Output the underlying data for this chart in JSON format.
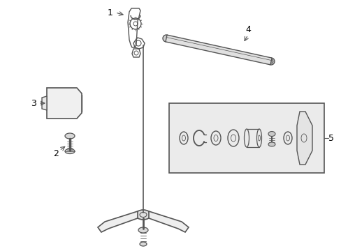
{
  "bg_color": "#ffffff",
  "line_color": "#555555",
  "label_color": "#000000",
  "box_fill": "#ebebeb",
  "figsize": [
    4.89,
    3.6
  ],
  "dpi": 100
}
